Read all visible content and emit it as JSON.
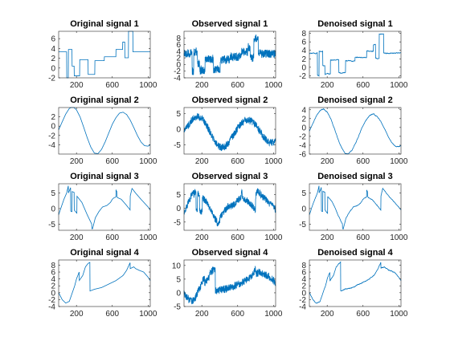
{
  "figure": {
    "background": "#ffffff",
    "axes_color": "#262626",
    "line_color": "#0072bd"
  },
  "chart_data": [
    {
      "type": "line",
      "title": "Original signal 1",
      "xlim": [
        1,
        1024
      ],
      "ylim": [
        -2,
        7.5
      ],
      "xticks": [
        200,
        600,
        1000
      ],
      "yticks": [
        -2,
        0,
        2,
        4,
        6
      ],
      "noise": 0,
      "smooth": 0,
      "series": [
        {
          "x": [
            1,
            90,
            90,
            110,
            110,
            150,
            150,
            175,
            175,
            235,
            235,
            330,
            330,
            405,
            405,
            510,
            510,
            640,
            640,
            715,
            715,
            740,
            740,
            780,
            780,
            830,
            830,
            1024
          ],
          "y": [
            3.3,
            3.3,
            -2,
            -2,
            3.8,
            3.8,
            0.4,
            0.4,
            -1.6,
            -1.6,
            1.7,
            1.7,
            -1.3,
            -1.3,
            1.5,
            1.5,
            2.3,
            2.3,
            3.8,
            3.8,
            5.3,
            5.3,
            2.1,
            2.1,
            7.8,
            7.8,
            3.3,
            3.3
          ]
        }
      ]
    },
    {
      "type": "line",
      "title": "Observed signal 1",
      "xlim": [
        1,
        1024
      ],
      "ylim": [
        -4,
        10
      ],
      "xticks": [
        200,
        600,
        1000
      ],
      "yticks": [
        -4,
        -2,
        0,
        2,
        4,
        6,
        8
      ],
      "noise": 1.3,
      "smooth": 0,
      "series": [
        {
          "x": [
            1,
            90,
            90,
            110,
            110,
            150,
            150,
            175,
            175,
            235,
            235,
            330,
            330,
            405,
            405,
            510,
            510,
            640,
            640,
            715,
            715,
            740,
            740,
            780,
            780,
            830,
            830,
            1024
          ],
          "y": [
            3.3,
            3.3,
            -2,
            -2,
            3.8,
            3.8,
            0.4,
            0.4,
            -1.6,
            -1.6,
            1.7,
            1.7,
            -1.3,
            -1.3,
            1.5,
            1.5,
            2.3,
            2.3,
            3.8,
            3.8,
            5.3,
            5.3,
            2.1,
            2.1,
            7.8,
            7.8,
            3.3,
            3.3
          ]
        }
      ]
    },
    {
      "type": "line",
      "title": "Denoised signal 1",
      "xlim": [
        1,
        1024
      ],
      "ylim": [
        -2.5,
        8.5
      ],
      "xticks": [
        200,
        600,
        1000
      ],
      "yticks": [
        -2,
        0,
        2,
        4,
        6,
        8
      ],
      "noise": 0.35,
      "smooth": 5,
      "series": [
        {
          "x": [
            1,
            90,
            90,
            110,
            110,
            150,
            150,
            175,
            175,
            235,
            235,
            330,
            330,
            405,
            405,
            510,
            510,
            640,
            640,
            715,
            715,
            740,
            740,
            780,
            780,
            830,
            830,
            1024
          ],
          "y": [
            3.3,
            3.3,
            -2,
            -2,
            3.8,
            3.8,
            0.4,
            0.4,
            -1.6,
            -1.6,
            1.7,
            1.7,
            -1.3,
            -1.3,
            1.5,
            1.5,
            2.3,
            2.3,
            3.8,
            3.8,
            5.3,
            5.3,
            2.1,
            2.1,
            7.8,
            7.8,
            3.3,
            3.3
          ]
        }
      ]
    },
    {
      "type": "line",
      "title": "Original signal 2",
      "xlim": [
        1,
        1024
      ],
      "ylim": [
        -6,
        4
      ],
      "xticks": [
        200,
        600,
        1000
      ],
      "yticks": [
        -4,
        -2,
        0,
        2
      ],
      "noise": 0,
      "smooth": 0,
      "series": [
        {
          "x": [
            1,
            40,
            80,
            120,
            160,
            200,
            240,
            280,
            320,
            360,
            400,
            440,
            480,
            520,
            560,
            600,
            640,
            680,
            720,
            760,
            800,
            840,
            880,
            920,
            960,
            1000,
            1024
          ],
          "y": [
            -0.8,
            0.9,
            2.6,
            3.8,
            4.2,
            3.5,
            2.0,
            -0.2,
            -2.5,
            -4.5,
            -5.8,
            -5.9,
            -5.0,
            -3.4,
            -1.5,
            0.4,
            1.8,
            2.8,
            3.0,
            2.5,
            1.3,
            -0.3,
            -2.0,
            -3.4,
            -4.2,
            -4.3,
            -4.0
          ]
        }
      ]
    },
    {
      "type": "line",
      "title": "Observed signal 2",
      "xlim": [
        1,
        1024
      ],
      "ylim": [
        -8,
        7
      ],
      "xticks": [
        200,
        600,
        1000
      ],
      "yticks": [
        -5,
        0,
        5
      ],
      "noise": 1.2,
      "smooth": 0,
      "series": [
        {
          "x": [
            1,
            40,
            80,
            120,
            160,
            200,
            240,
            280,
            320,
            360,
            400,
            440,
            480,
            520,
            560,
            600,
            640,
            680,
            720,
            760,
            800,
            840,
            880,
            920,
            960,
            1000,
            1024
          ],
          "y": [
            -0.8,
            0.9,
            2.6,
            3.8,
            4.2,
            3.5,
            2.0,
            -0.2,
            -2.5,
            -4.5,
            -5.8,
            -5.9,
            -5.0,
            -3.4,
            -1.5,
            0.4,
            1.8,
            2.8,
            3.0,
            2.5,
            1.3,
            -0.3,
            -2.0,
            -3.4,
            -4.2,
            -4.3,
            -4.0
          ]
        }
      ]
    },
    {
      "type": "line",
      "title": "Denoised signal 2",
      "xlim": [
        1,
        1024
      ],
      "ylim": [
        -6,
        4.5
      ],
      "xticks": [
        200,
        600,
        1000
      ],
      "yticks": [
        -6,
        -4,
        -2,
        0,
        2,
        4
      ],
      "noise": 0.3,
      "smooth": 5,
      "series": [
        {
          "x": [
            1,
            40,
            80,
            120,
            160,
            200,
            240,
            280,
            320,
            360,
            400,
            440,
            480,
            520,
            560,
            600,
            640,
            680,
            720,
            760,
            800,
            840,
            880,
            920,
            960,
            1000,
            1024
          ],
          "y": [
            -0.8,
            0.9,
            2.6,
            3.8,
            4.2,
            3.5,
            2.0,
            -0.2,
            -2.5,
            -4.5,
            -5.8,
            -5.9,
            -5.0,
            -3.4,
            -1.5,
            0.4,
            1.8,
            2.8,
            3.0,
            2.5,
            1.3,
            -0.3,
            -2.0,
            -3.4,
            -4.2,
            -4.3,
            -4.0
          ]
        }
      ]
    },
    {
      "type": "line",
      "title": "Original signal 3",
      "xlim": [
        1,
        1024
      ],
      "ylim": [
        -7,
        8
      ],
      "xticks": [
        200,
        600,
        1000
      ],
      "yticks": [
        -5,
        0,
        5
      ],
      "noise": 0,
      "smooth": 0,
      "series": [
        {
          "x": [
            1,
            30,
            60,
            90,
            110,
            110,
            135,
            135,
            150,
            150,
            175,
            175,
            205,
            205,
            260,
            320,
            370,
            370,
            380,
            410,
            450,
            490,
            540,
            580,
            600,
            620,
            640,
            640,
            650,
            650,
            660,
            700,
            760,
            800,
            800,
            820,
            860,
            920,
            1000,
            1024
          ],
          "y": [
            -2.0,
            0.5,
            3.0,
            5.0,
            7.5,
            5.0,
            6.8,
            -0.8,
            -1.0,
            5.5,
            5.2,
            -0.5,
            -1.5,
            4.0,
            2.0,
            -2.0,
            -5.0,
            -6.5,
            -6.5,
            -3.0,
            -1.0,
            0.5,
            1.0,
            2.0,
            3.0,
            3.5,
            3.7,
            6.0,
            5.5,
            4.0,
            3.5,
            3.0,
            1.0,
            -0.5,
            4.0,
            6.5,
            5.0,
            3.0,
            0.5,
            -0.5
          ]
        }
      ]
    },
    {
      "type": "line",
      "title": "Observed signal 3",
      "xlim": [
        1,
        1024
      ],
      "ylim": [
        -8,
        9
      ],
      "xticks": [
        200,
        600,
        1000
      ],
      "yticks": [
        -5,
        0,
        5
      ],
      "noise": 1.3,
      "smooth": 0,
      "series": [
        {
          "x": [
            1,
            30,
            60,
            90,
            110,
            110,
            135,
            135,
            150,
            150,
            175,
            175,
            205,
            205,
            260,
            320,
            370,
            370,
            380,
            410,
            450,
            490,
            540,
            580,
            600,
            620,
            640,
            640,
            650,
            650,
            660,
            700,
            760,
            800,
            800,
            820,
            860,
            920,
            1000,
            1024
          ],
          "y": [
            -2.0,
            0.5,
            3.0,
            5.0,
            7.5,
            5.0,
            6.8,
            -0.8,
            -1.0,
            5.5,
            5.2,
            -0.5,
            -1.5,
            4.0,
            2.0,
            -2.0,
            -5.0,
            -6.5,
            -6.5,
            -3.0,
            -1.0,
            0.5,
            1.0,
            2.0,
            3.0,
            3.5,
            3.7,
            6.0,
            5.5,
            4.0,
            3.5,
            3.0,
            1.0,
            -0.5,
            4.0,
            6.5,
            5.0,
            3.0,
            0.5,
            -0.5
          ]
        }
      ]
    },
    {
      "type": "line",
      "title": "Denoised signal 3",
      "xlim": [
        1,
        1024
      ],
      "ylim": [
        -7,
        8
      ],
      "xticks": [
        200,
        600,
        1000
      ],
      "yticks": [
        -5,
        0,
        5
      ],
      "noise": 0.35,
      "smooth": 5,
      "series": [
        {
          "x": [
            1,
            30,
            60,
            90,
            110,
            110,
            135,
            135,
            150,
            150,
            175,
            175,
            205,
            205,
            260,
            320,
            370,
            370,
            380,
            410,
            450,
            490,
            540,
            580,
            600,
            620,
            640,
            640,
            650,
            650,
            660,
            700,
            760,
            800,
            800,
            820,
            860,
            920,
            1000,
            1024
          ],
          "y": [
            -2.0,
            0.5,
            3.0,
            5.0,
            7.5,
            5.0,
            6.8,
            -0.8,
            -1.0,
            5.5,
            5.2,
            -0.5,
            -1.5,
            4.0,
            2.0,
            -2.0,
            -5.0,
            -6.5,
            -6.5,
            -3.0,
            -1.0,
            0.5,
            1.0,
            2.0,
            3.0,
            3.5,
            3.7,
            6.0,
            5.5,
            4.0,
            3.5,
            3.0,
            1.0,
            -0.5,
            4.0,
            6.5,
            5.0,
            3.0,
            0.5,
            -0.5
          ]
        }
      ]
    },
    {
      "type": "line",
      "title": "Original signal 4",
      "xlim": [
        1,
        1024
      ],
      "ylim": [
        -4,
        9.5
      ],
      "xticks": [
        200,
        600,
        1000
      ],
      "yticks": [
        -4,
        -2,
        0,
        2,
        4,
        6,
        8
      ],
      "noise": 0,
      "smooth": 0,
      "series": [
        {
          "x": [
            1,
            40,
            80,
            120,
            160,
            180,
            200,
            230,
            230,
            270,
            300,
            330,
            350,
            350,
            400,
            480,
            560,
            640,
            720,
            760,
            800,
            800,
            840,
            860,
            900,
            950,
            1000,
            1024
          ],
          "y": [
            0.0,
            -2.0,
            -3.0,
            -2.5,
            0.5,
            2.0,
            4.0,
            6.0,
            3.5,
            5.0,
            7.5,
            8.5,
            8.8,
            0.5,
            1.0,
            1.5,
            2.5,
            3.5,
            5.0,
            6.5,
            8.8,
            7.0,
            7.5,
            7.0,
            6.5,
            6.0,
            4.5,
            3.5
          ]
        }
      ]
    },
    {
      "type": "line",
      "title": "Observed signal 4",
      "xlim": [
        1,
        1024
      ],
      "ylim": [
        -5,
        12
      ],
      "xticks": [
        200,
        600,
        1000
      ],
      "yticks": [
        -5,
        0,
        5,
        10
      ],
      "noise": 1.4,
      "smooth": 0,
      "series": [
        {
          "x": [
            1,
            40,
            80,
            120,
            160,
            180,
            200,
            230,
            230,
            270,
            300,
            330,
            350,
            350,
            400,
            480,
            560,
            640,
            720,
            760,
            800,
            800,
            840,
            860,
            900,
            950,
            1000,
            1024
          ],
          "y": [
            0.0,
            -2.0,
            -3.0,
            -2.5,
            0.5,
            2.0,
            4.0,
            6.0,
            3.5,
            5.0,
            7.5,
            8.5,
            8.8,
            0.5,
            1.0,
            1.5,
            2.5,
            3.5,
            5.0,
            6.5,
            8.8,
            7.0,
            7.5,
            7.0,
            6.5,
            6.0,
            4.5,
            3.5
          ]
        }
      ]
    },
    {
      "type": "line",
      "title": "Denoised signal 4",
      "xlim": [
        1,
        1024
      ],
      "ylim": [
        -4,
        9.5
      ],
      "xticks": [
        200,
        600,
        1000
      ],
      "yticks": [
        -4,
        -2,
        0,
        2,
        4,
        6,
        8
      ],
      "noise": 0.4,
      "smooth": 5,
      "series": [
        {
          "x": [
            1,
            40,
            80,
            120,
            160,
            180,
            200,
            230,
            230,
            270,
            300,
            330,
            350,
            350,
            400,
            480,
            560,
            640,
            720,
            760,
            800,
            800,
            840,
            860,
            900,
            950,
            1000,
            1024
          ],
          "y": [
            0.0,
            -2.0,
            -3.0,
            -2.5,
            0.5,
            2.0,
            4.0,
            6.0,
            3.5,
            5.0,
            7.5,
            8.5,
            8.8,
            0.5,
            1.0,
            1.5,
            2.5,
            3.5,
            5.0,
            6.5,
            8.8,
            7.0,
            7.5,
            7.0,
            6.5,
            6.0,
            4.5,
            3.5
          ]
        }
      ]
    }
  ]
}
